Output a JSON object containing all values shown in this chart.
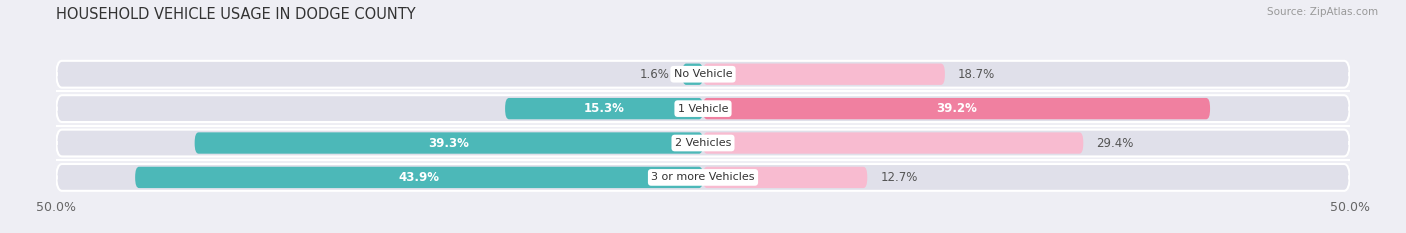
{
  "title": "HOUSEHOLD VEHICLE USAGE IN DODGE COUNTY",
  "source": "Source: ZipAtlas.com",
  "categories": [
    "No Vehicle",
    "1 Vehicle",
    "2 Vehicles",
    "3 or more Vehicles"
  ],
  "owner_values": [
    1.6,
    15.3,
    39.3,
    43.9
  ],
  "renter_values": [
    18.7,
    39.2,
    29.4,
    12.7
  ],
  "owner_color": "#4CB8B8",
  "renter_color": "#F080A0",
  "renter_color_light": "#F8BBD0",
  "xlim": [
    -50,
    50
  ],
  "xticklabels": [
    "50.0%",
    "50.0%"
  ],
  "bar_height": 0.62,
  "background_color": "#eeeef4",
  "bar_bg_color": "#e0e0ea",
  "title_fontsize": 10.5,
  "label_fontsize": 8.5,
  "tick_fontsize": 9,
  "source_fontsize": 7.5
}
